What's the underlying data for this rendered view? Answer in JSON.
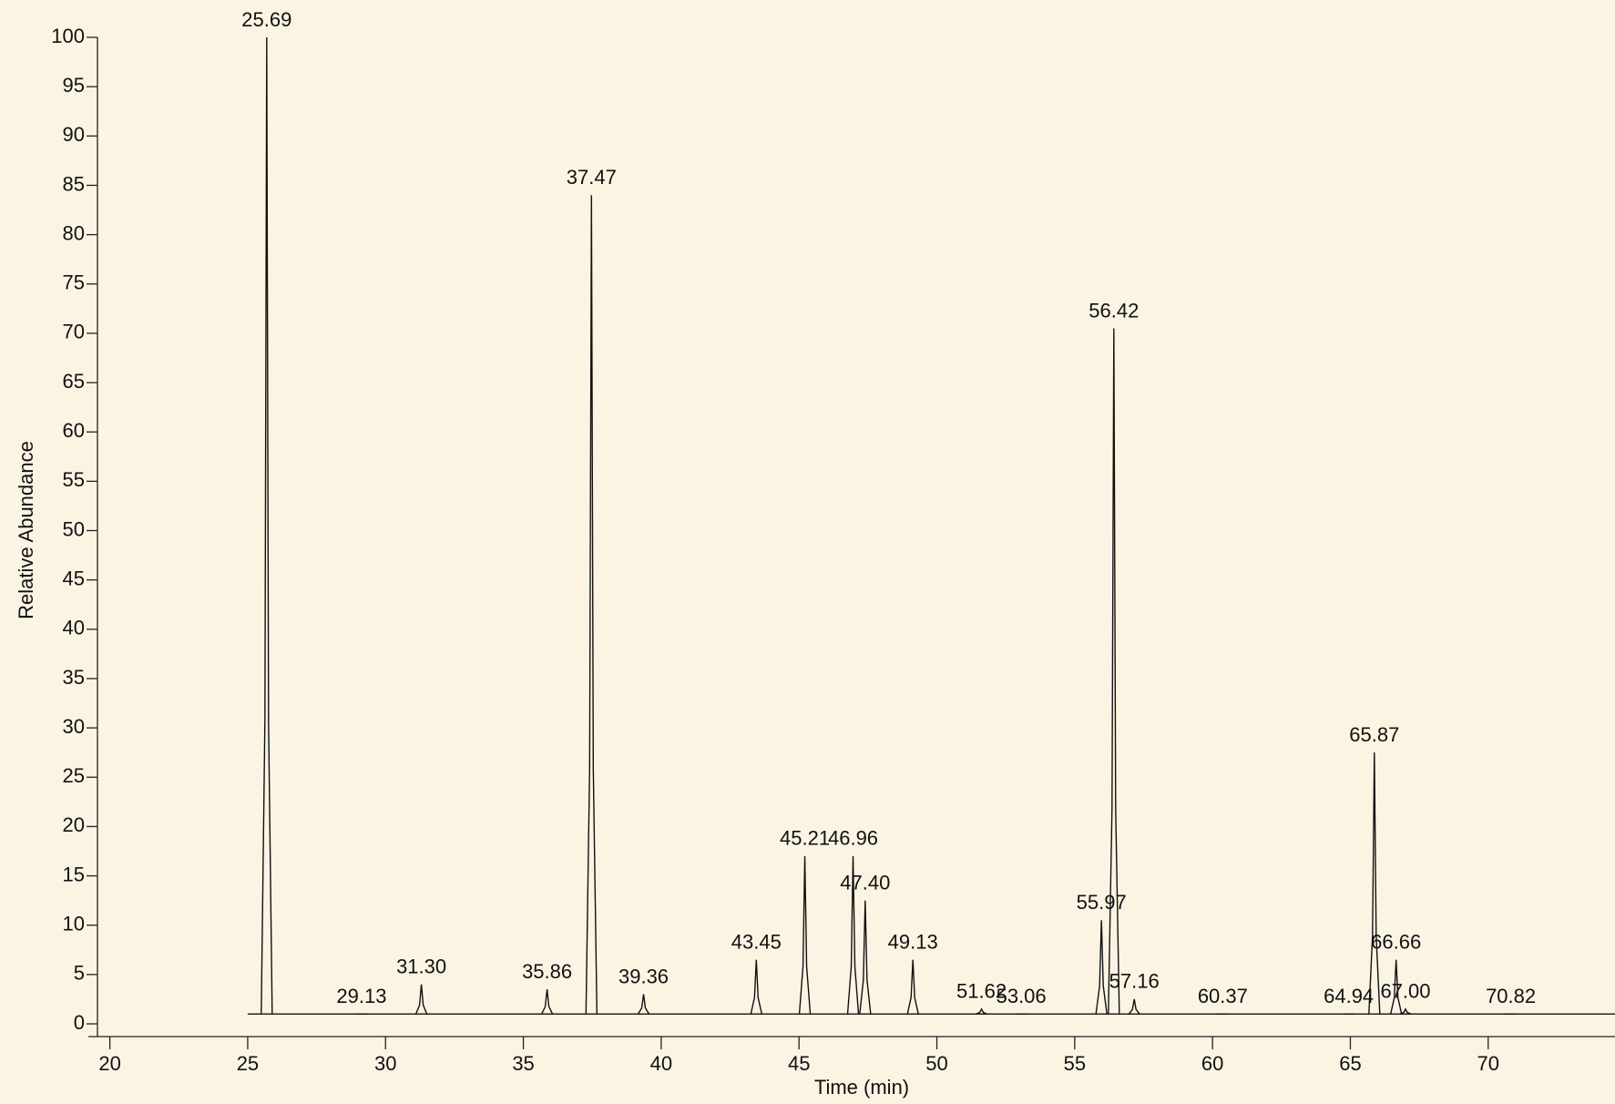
{
  "chart_data": {
    "type": "chromatogram",
    "x_label": "Time (min)",
    "y_label": "Relative Abundance",
    "x": [
      25.69,
      29.13,
      31.3,
      35.86,
      37.47,
      39.36,
      43.45,
      45.21,
      46.96,
      47.4,
      49.13,
      51.62,
      53.06,
      55.97,
      56.42,
      57.16,
      60.37,
      64.94,
      65.87,
      66.66,
      67.0,
      70.82
    ],
    "value_labels": [
      "25.69",
      "29.13",
      "31.30",
      "35.86",
      "37.47",
      "39.36",
      "43.45",
      "45.21",
      "46.96",
      "47.40",
      "49.13",
      "51.62",
      "53.06",
      "55.97",
      "56.42",
      "57.16",
      "60.37",
      "64.94",
      "65.87",
      "66.66",
      "67.00",
      "70.82"
    ],
    "values": [
      100,
      1,
      4,
      3.5,
      84,
      3,
      6.5,
      17,
      17,
      12.5,
      6.5,
      1.5,
      1,
      10.5,
      70.5,
      2.5,
      1,
      1,
      27.5,
      6.5,
      1.5,
      1
    ],
    "baseline": 1,
    "color": "#111111",
    "xlim": [
      19.55,
      74.6
    ],
    "xticks": [
      20,
      25,
      30,
      35,
      40,
      45,
      50,
      55,
      60,
      65,
      70
    ],
    "ylim": [
      0,
      100
    ],
    "yticks": [
      0,
      5,
      10,
      15,
      20,
      25,
      30,
      35,
      40,
      45,
      50,
      55,
      60,
      65,
      70,
      75,
      80,
      85,
      90,
      95,
      100
    ]
  }
}
